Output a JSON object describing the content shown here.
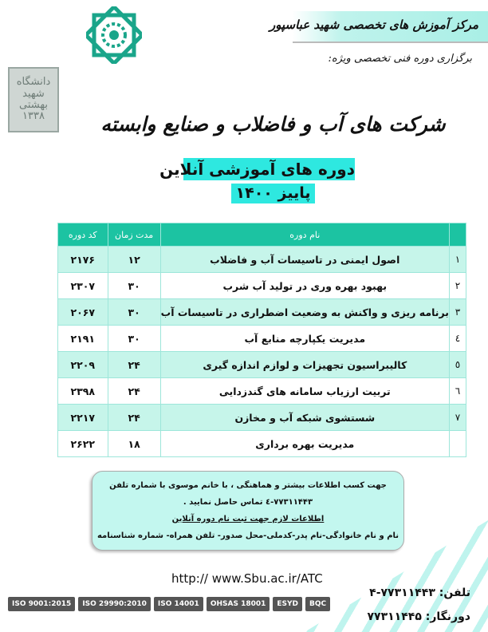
{
  "header": {
    "center_name": "مرکز آموزش های تخصصی شهید عباسپور",
    "subtitle": "برگزاری دوره فنی تخصصی ویژه:",
    "logo_university": "دانشگاه شهید بهشتی ۱۳۳۸"
  },
  "title": "شرکت های آب و فاضلاب و صنایع وابسته",
  "course_type": "دوره های آموزشی آنلاین",
  "season": "پاییز ۱۴۰۰",
  "table": {
    "headers": [
      "",
      "نام دوره",
      "مدت زمان",
      "کد دوره"
    ],
    "rows": [
      {
        "num": "۱",
        "name": "اصول ایمنی در تاسیسات آب و فاضلاب",
        "hours": "۱۲",
        "code": "۲۱۷۶"
      },
      {
        "num": "۲",
        "name": "بهبود بهره وری در تولید آب شرب",
        "hours": "۳۰",
        "code": "۲۳۰۷"
      },
      {
        "num": "۳",
        "name": "برنامه ریزی و واکنش به وضعیت اضطراری در تاسیسات آب",
        "hours": "۳۰",
        "code": "۲۰۶۷"
      },
      {
        "num": "٤",
        "name": "مدیریت یکپارچه منابع آب",
        "hours": "۳۰",
        "code": "۲۱۹۱"
      },
      {
        "num": "٥",
        "name": "کالیبراسیون تجهیزات و لوازم اندازه گیری",
        "hours": "۲۴",
        "code": "۲۲۰۹"
      },
      {
        "num": "٦",
        "name": "تربیت ارزیاب سامانه های گندزدایی",
        "hours": "۲۴",
        "code": "۲۳۹۸"
      },
      {
        "num": "۷",
        "name": "شستشوی شبکه آب و مخازن",
        "hours": "۲۴",
        "code": "۲۲۱۷"
      },
      {
        "num": "",
        "name": "مدیریت بهره برداری",
        "hours": "۱۸",
        "code": "۲۶۲۲"
      }
    ]
  },
  "info": {
    "line1": "جهت کسب اطلاعات بیشتر و هماهنگی ، با خانم موسوی  با شماره تلفن",
    "line2": "۷۷۳۱۱۴۴۳-٤ تماس حاصل نمایید .",
    "heading": "اطلاعات لازم جهت ثبت نام دوره آنلاین",
    "line3": "نام و نام خانوادگی-نام پدر-کدملی-محل صدور- تلفن همراه- شماره شناسنامه"
  },
  "footer": {
    "url": "http:// www.Sbu.ac.ir/ATC",
    "phone_label": "تلفن:",
    "phone": "۷۷۳۱۱۴۴۳-۴",
    "fax_label": "دورنگار:",
    "fax": "۷۷۳۱۱۴۴۵",
    "certs": [
      "ISO 9001:2015",
      "ISO 29990:2010",
      "ISO 14001",
      "OHSAS 18001",
      "ESYD",
      "BQC"
    ]
  }
}
